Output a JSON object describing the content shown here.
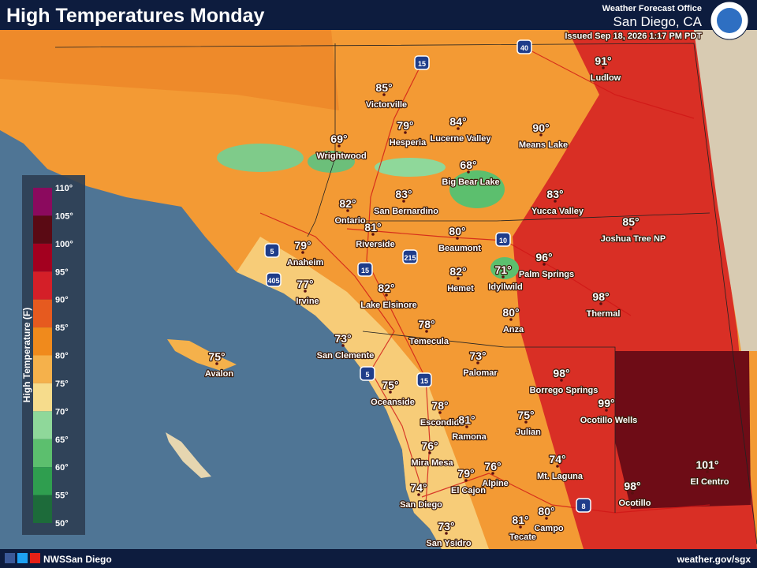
{
  "header": {
    "title": "High Temperatures Monday",
    "office": "Weather Forecast Office",
    "location": "San Diego, CA",
    "issued": "Issued Sep 18, 2026 1:17 PM PDT"
  },
  "legend": {
    "title": "High Temperature (F)",
    "ticks": [
      "110°",
      "105°",
      "100°",
      "95°",
      "90°",
      "85°",
      "80°",
      "75°",
      "70°",
      "65°",
      "60°",
      "55°",
      "50°"
    ],
    "colors": [
      "#8b0a5e",
      "#5a0a14",
      "#a3001f",
      "#d41f28",
      "#e65a1f",
      "#f08a1c",
      "#f5b14b",
      "#f6dc8c",
      "#8fd89a",
      "#5cbf6e",
      "#2f9e4f",
      "#1d6b3a"
    ]
  },
  "cities": [
    {
      "temp": "91°",
      "name": "Ludlow"
    },
    {
      "temp": "85°",
      "name": "Victorville"
    },
    {
      "temp": "79°",
      "name": "Hesperia"
    },
    {
      "temp": "84°",
      "name": "Lucerne Valley"
    },
    {
      "temp": "90°",
      "name": "Means Lake"
    },
    {
      "temp": "69°",
      "name": "Wrightwood"
    },
    {
      "temp": "68°",
      "name": "Big Bear Lake"
    },
    {
      "temp": "83°",
      "name": "San Bernardino"
    },
    {
      "temp": "83°",
      "name": "Yucca Valley"
    },
    {
      "temp": "82°",
      "name": "Ontario"
    },
    {
      "temp": "85°",
      "name": "Joshua Tree NP"
    },
    {
      "temp": "81°",
      "name": "Riverside"
    },
    {
      "temp": "80°",
      "name": "Beaumont"
    },
    {
      "temp": "79°",
      "name": "Anaheim"
    },
    {
      "temp": "96°",
      "name": "Palm Springs"
    },
    {
      "temp": "77°",
      "name": "Irvine"
    },
    {
      "temp": "82°",
      "name": "Hemet"
    },
    {
      "temp": "71°",
      "name": "Idyllwild"
    },
    {
      "temp": "82°",
      "name": "Lake Elsinore"
    },
    {
      "temp": "98°",
      "name": "Thermal"
    },
    {
      "temp": "80°",
      "name": "Anza"
    },
    {
      "temp": "78°",
      "name": "Temecula"
    },
    {
      "temp": "73°",
      "name": "San Clemente"
    },
    {
      "temp": "73°",
      "name": "Palomar"
    },
    {
      "temp": "75°",
      "name": "Avalon"
    },
    {
      "temp": "98°",
      "name": "Borrego Springs"
    },
    {
      "temp": "75°",
      "name": "Oceanside"
    },
    {
      "temp": "99°",
      "name": "Ocotillo Wells"
    },
    {
      "temp": "78°",
      "name": "Escondido"
    },
    {
      "temp": "81°",
      "name": "Ramona"
    },
    {
      "temp": "75°",
      "name": "Julian"
    },
    {
      "temp": "76°",
      "name": "Mira Mesa"
    },
    {
      "temp": "74°",
      "name": "Mt. Laguna"
    },
    {
      "temp": "101°",
      "name": "El Centro"
    },
    {
      "temp": "79°",
      "name": "El Cajon"
    },
    {
      "temp": "76°",
      "name": "Alpine"
    },
    {
      "temp": "74°",
      "name": "San Diego"
    },
    {
      "temp": "98°",
      "name": "Ocotillo"
    },
    {
      "temp": "80°",
      "name": "Campo"
    },
    {
      "temp": "81°",
      "name": "Tecate"
    },
    {
      "temp": "73°",
      "name": "San Ysidro"
    }
  ],
  "shields": [
    "15",
    "40",
    "5",
    "405",
    "215",
    "10",
    "15",
    "5",
    "15",
    "8"
  ],
  "footer": {
    "social": "NWSSan Diego",
    "url": "weather.gov/sgx"
  }
}
